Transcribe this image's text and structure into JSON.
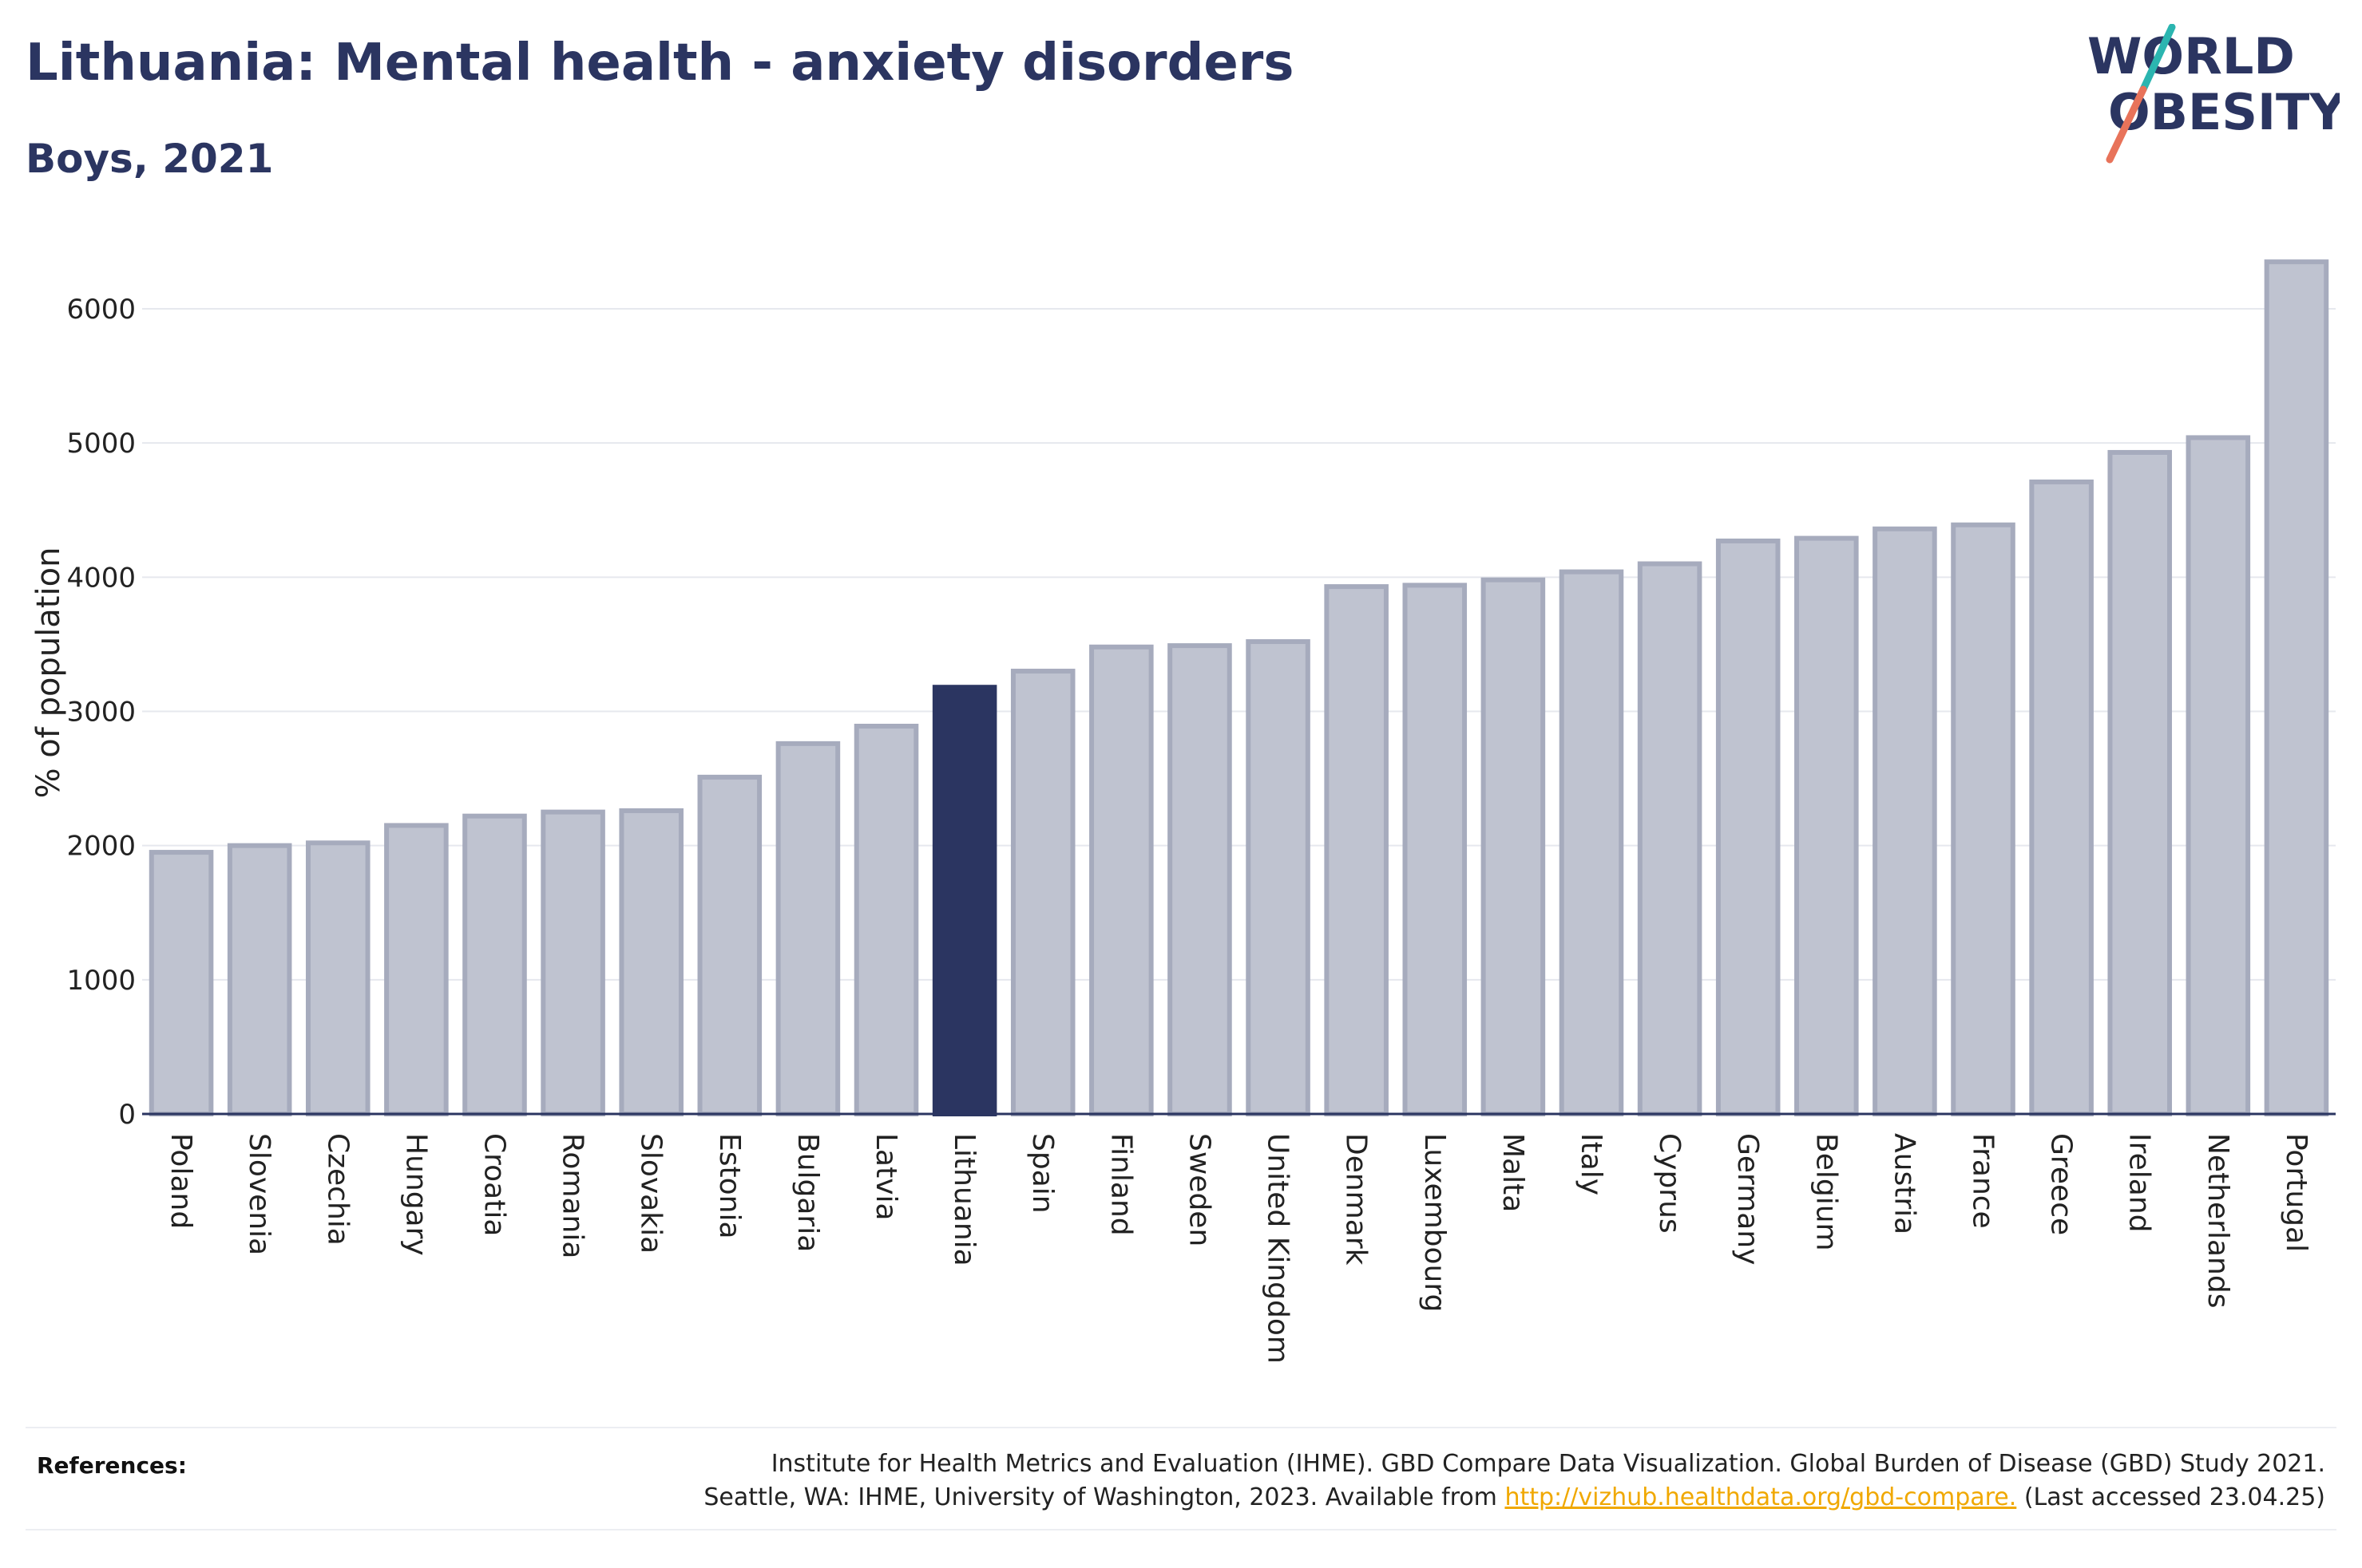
{
  "header": {
    "title": "Lithuania: Mental health - anxiety disorders",
    "subtitle": "Boys, 2021"
  },
  "logo": {
    "line1": "WORLD",
    "line2": "OBESITY",
    "colors": {
      "text": "#2b3561",
      "slash_teal": "#2bb5b0",
      "slash_red": "#e8735a"
    }
  },
  "chart_data": {
    "type": "bar",
    "ylabel": "% of population",
    "xlabel": "",
    "ylim": [
      0,
      6500
    ],
    "yticks": [
      0,
      1000,
      2000,
      3000,
      4000,
      5000,
      6000
    ],
    "grid": true,
    "highlight": "Lithuania",
    "colors": {
      "bar": "#bfc3d0",
      "bar_border": "#a6abbd",
      "highlight": "#2b3561",
      "grid": "#e6e8ee",
      "axis": "#2b3561"
    },
    "categories": [
      "Poland",
      "Slovenia",
      "Czechia",
      "Hungary",
      "Croatia",
      "Romania",
      "Slovakia",
      "Estonia",
      "Bulgaria",
      "Latvia",
      "Lithuania",
      "Spain",
      "Finland",
      "Sweden",
      "United Kingdom",
      "Denmark",
      "Luxembourg",
      "Malta",
      "Italy",
      "Cyprus",
      "Germany",
      "Belgium",
      "Austria",
      "France",
      "Greece",
      "Ireland",
      "Netherlands",
      "Portugal"
    ],
    "values": [
      1950,
      2000,
      2020,
      2150,
      2220,
      2250,
      2260,
      2510,
      2760,
      2890,
      3180,
      3300,
      3480,
      3490,
      3520,
      3930,
      3940,
      3980,
      4040,
      4100,
      4270,
      4290,
      4360,
      4390,
      4710,
      4930,
      5040,
      6350
    ]
  },
  "references": {
    "label": "References:",
    "line1": "Institute for Health Metrics and Evaluation (IHME). GBD Compare Data Visualization. Global Burden of Disease (GBD) Study 2021.",
    "line2_prefix": "Seattle, WA: IHME, University of Washington, 2023. Available from ",
    "link": "http://vizhub.healthdata.org/gbd-compare.",
    "line2_suffix": " (Last accessed 23.04.25)"
  }
}
